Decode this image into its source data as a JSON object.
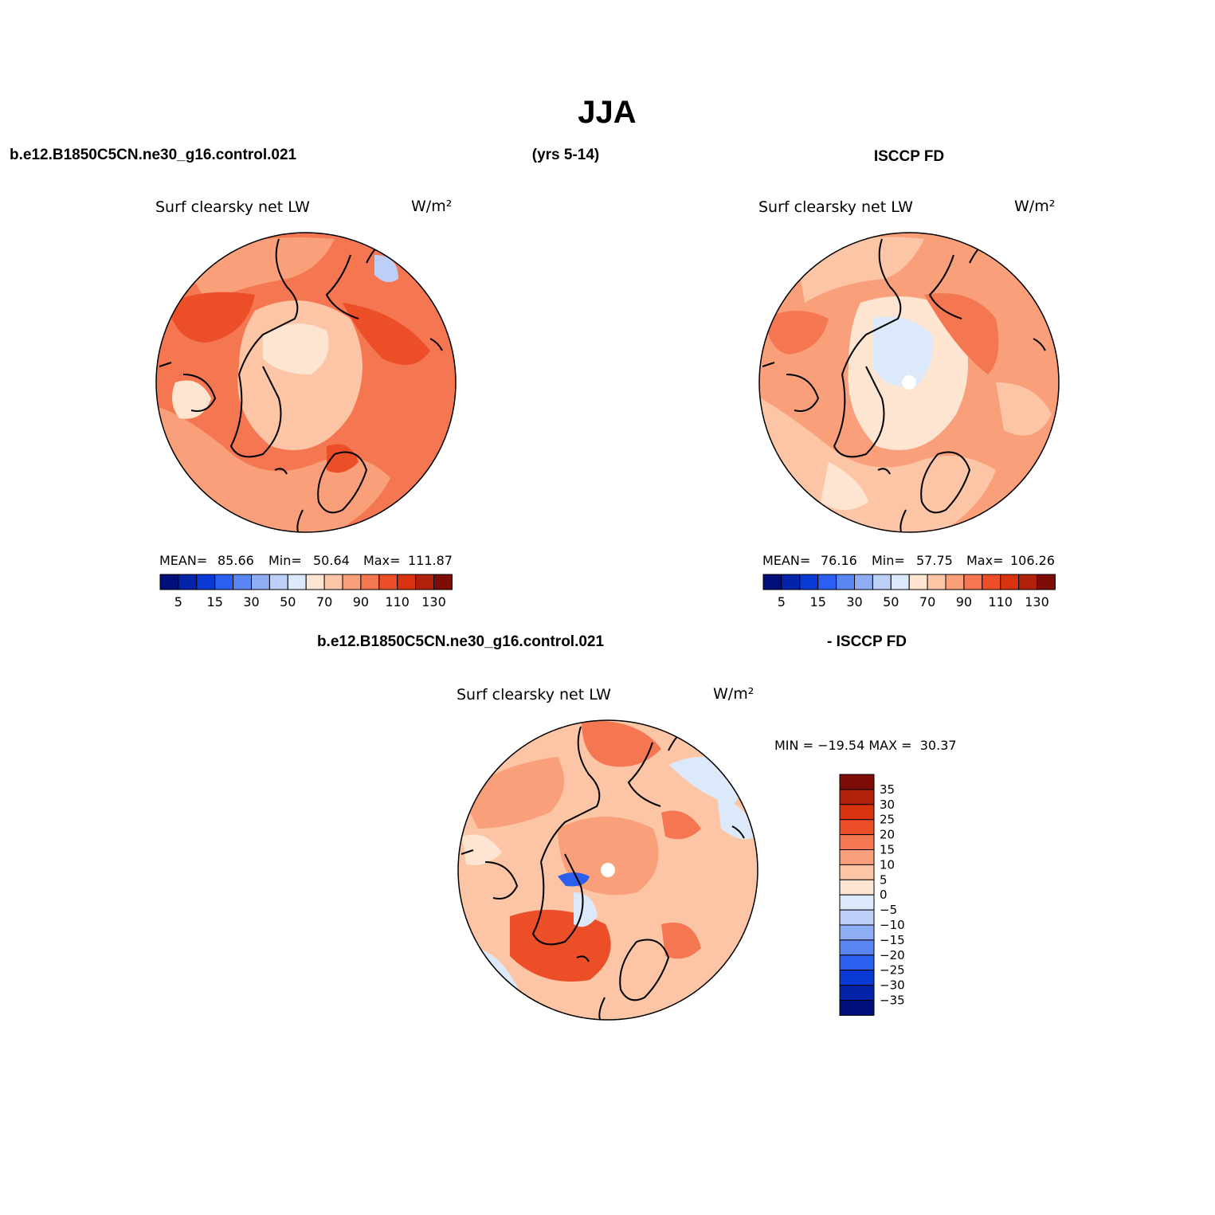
{
  "title": "JJA",
  "header": {
    "case_name": "b.e12.B1850C5CN.ne30_g16.control.021",
    "years": "(yrs 5-14)",
    "obs_name": "ISCCP FD",
    "diff_case": "b.e12.B1850C5CN.ne30_g16.control.021",
    "diff_obs": "- ISCCP FD"
  },
  "panels": {
    "model": {
      "variable": "Surf clearsky net LW",
      "units": "W/m²",
      "stats": {
        "mean_label": "MEAN=",
        "mean": "85.66",
        "min_label": "Min=",
        "min": "50.64",
        "max_label": "Max=",
        "max": "111.87"
      }
    },
    "obs": {
      "variable": "Surf clearsky net LW",
      "units": "W/m²",
      "stats": {
        "mean_label": "MEAN=",
        "mean": "76.16",
        "min_label": "Min=",
        "min": "57.75",
        "max_label": "Max=",
        "max": "106.26"
      }
    },
    "diff": {
      "variable": "Surf clearsky net LW",
      "units": "W/m²",
      "minmax": "MIN = −19.54 MAX =  30.37"
    }
  },
  "colorbar_field": {
    "labels": [
      "5",
      "15",
      "30",
      "50",
      "70",
      "90",
      "110",
      "130"
    ],
    "colors": [
      "#000e7a",
      "#0324a8",
      "#0a3ad6",
      "#2b5ff0",
      "#5a86f2",
      "#8fadf5",
      "#bcd0f7",
      "#dce9fa",
      "#fde5d2",
      "#fcc6a6",
      "#f9a07a",
      "#f47752",
      "#ec4e28",
      "#d8320f",
      "#b0200b",
      "#7e0c06"
    ]
  },
  "colorbar_diff": {
    "labels": [
      "35",
      "30",
      "25",
      "20",
      "15",
      "10",
      "5",
      "0",
      "−5",
      "−10",
      "−15",
      "−20",
      "−25",
      "−30",
      "−35"
    ],
    "colors": [
      "#7e0c06",
      "#b0200b",
      "#d8320f",
      "#ec4e28",
      "#f47752",
      "#f9a07a",
      "#fcc6a6",
      "#fde5d2",
      "#dce9fa",
      "#bcd0f7",
      "#8fadf5",
      "#5a86f2",
      "#2b5ff0",
      "#0a3ad6",
      "#0324a8",
      "#000e7a"
    ]
  }
}
